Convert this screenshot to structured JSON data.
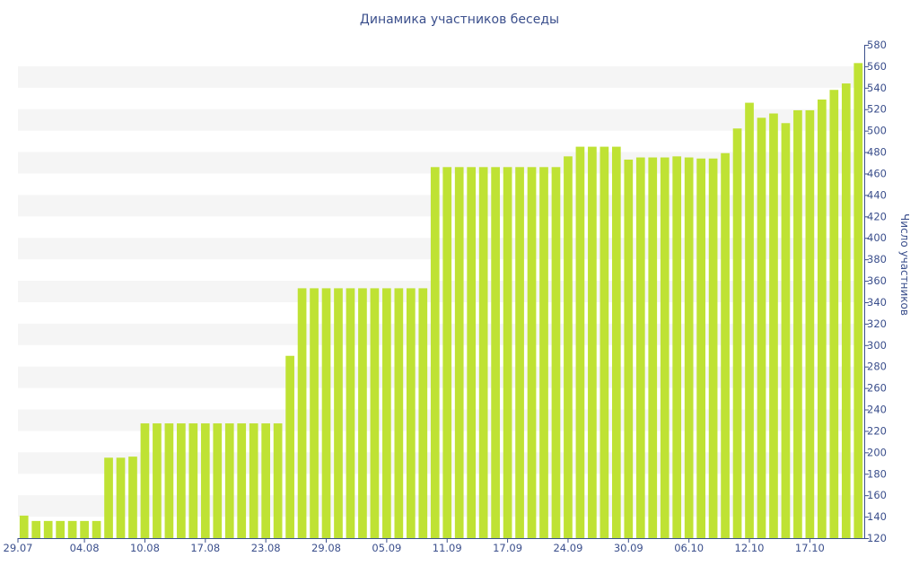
{
  "chart_data": {
    "type": "bar",
    "title": "Динамика участников беседы",
    "xlabel": "",
    "ylabel": "Число участников",
    "ylim": [
      120,
      580
    ],
    "ytick_step": 20,
    "grid": "alternating horizontal bands",
    "y_axis_position": "right",
    "bar_color": "#bfe234",
    "band_color": "#f5f5f5",
    "text_color": "#3b4f8c",
    "x_tick_labels": [
      {
        "label": "29.07",
        "index": 0
      },
      {
        "label": "04.08",
        "index": 5.5
      },
      {
        "label": "10.08",
        "index": 10.5
      },
      {
        "label": "17.08",
        "index": 15.5
      },
      {
        "label": "23.08",
        "index": 20.5
      },
      {
        "label": "29.08",
        "index": 25.5
      },
      {
        "label": "05.09",
        "index": 30.5
      },
      {
        "label": "11.09",
        "index": 35.5
      },
      {
        "label": "17.09",
        "index": 40.5
      },
      {
        "label": "24.09",
        "index": 45.5
      },
      {
        "label": "30.09",
        "index": 50.5
      },
      {
        "label": "06.10",
        "index": 55.5
      },
      {
        "label": "12.10",
        "index": 60.5
      },
      {
        "label": "17.10",
        "index": 65.5
      }
    ],
    "values": [
      141,
      136,
      136,
      136,
      136,
      136,
      136,
      195,
      195,
      196,
      227,
      227,
      227,
      227,
      227,
      227,
      227,
      227,
      227,
      227,
      227,
      227,
      290,
      353,
      353,
      353,
      353,
      353,
      353,
      353,
      353,
      353,
      353,
      353,
      466,
      466,
      466,
      466,
      466,
      466,
      466,
      466,
      466,
      466,
      466,
      476,
      485,
      485,
      485,
      485,
      473,
      475,
      475,
      475,
      476,
      475,
      474,
      474,
      479,
      502,
      526,
      512,
      516,
      507,
      519,
      519,
      529,
      538,
      544,
      563
    ]
  }
}
